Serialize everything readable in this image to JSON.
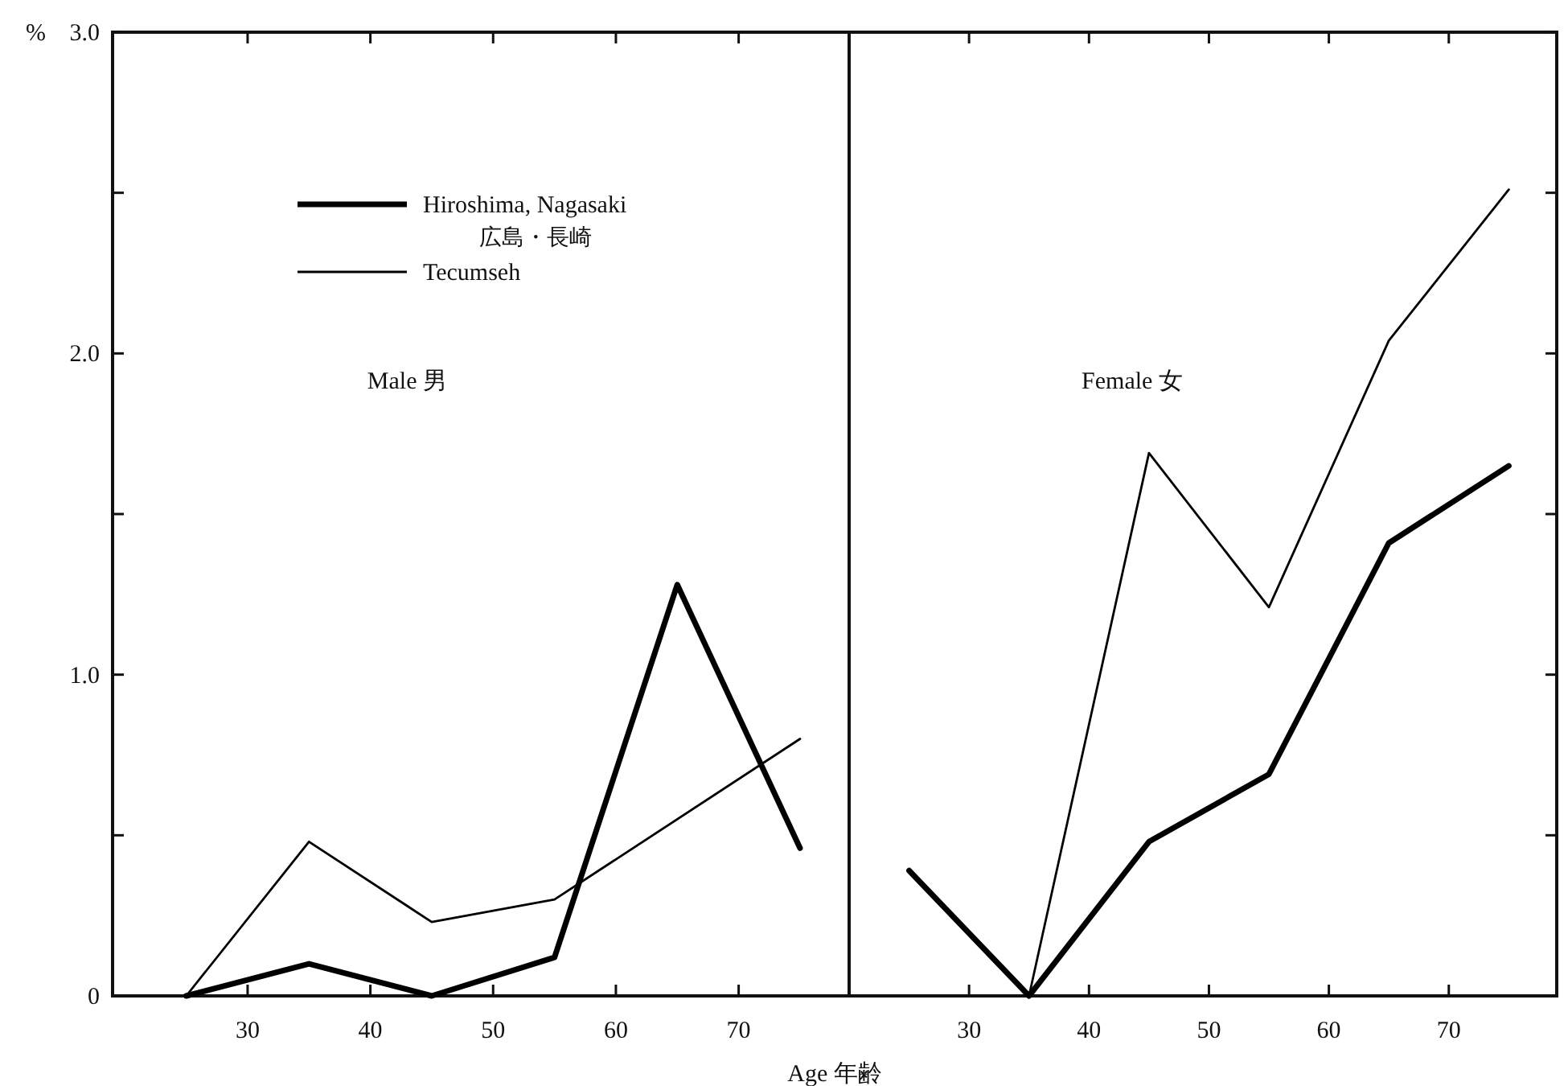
{
  "chart_data": [
    {
      "type": "line",
      "annotations": [
        "Male 男"
      ],
      "xlabel": "Age 年齢",
      "ylabel": "%",
      "x": [
        25,
        35,
        45,
        55,
        65,
        75
      ],
      "series": [
        {
          "name": "Hiroshima, Nagasaki\n広島・長崎",
          "color": "#000000",
          "values": [
            0,
            0.1,
            0,
            0.12,
            1.28,
            0.46
          ]
        },
        {
          "name": "Tecumseh",
          "color": "#000000",
          "values": [
            0,
            0.48,
            0.23,
            0.3,
            null,
            0.8
          ]
        }
      ],
      "xlim": [
        19,
        79
      ],
      "xticks": [
        30,
        40,
        50,
        60,
        70
      ],
      "ylim": [
        0,
        3.0
      ],
      "yticks": [
        0,
        {
          "value": 0.5,
          "label": null
        },
        {
          "value": 1.0,
          "label": "1.0"
        },
        {
          "value": 1.5,
          "label": null
        },
        {
          "value": 2.0,
          "label": "2.0"
        },
        {
          "value": 2.5,
          "label": null
        },
        {
          "value": 3.0,
          "label": "3.0"
        }
      ],
      "legend": "top left"
    },
    {
      "type": "line",
      "annotations": [
        "Female 女"
      ],
      "x": [
        25,
        35,
        45,
        55,
        65,
        75
      ],
      "series": [
        {
          "color": "#000000",
          "values": [
            0.39,
            0,
            0.48,
            0.69,
            1.41,
            1.65
          ]
        },
        {
          "color": "#000000",
          "values": [
            null,
            0,
            1.69,
            1.21,
            2.04,
            2.51
          ]
        }
      ],
      "xlim": [
        20,
        79
      ],
      "xticks": [
        30,
        40,
        50,
        60,
        70
      ],
      "ylim": [
        0,
        3.0
      ],
      "yticks": [
        0,
        {
          "value": 0.5,
          "label": null
        },
        {
          "value": 1.0,
          "label": null
        },
        {
          "value": 1.5,
          "label": null
        },
        {
          "value": 2.0,
          "label": null
        },
        {
          "value": 2.5,
          "label": null
        },
        {
          "value": 3.0,
          "label": null
        }
      ],
      "tick_labels": "x"
    }
  ]
}
